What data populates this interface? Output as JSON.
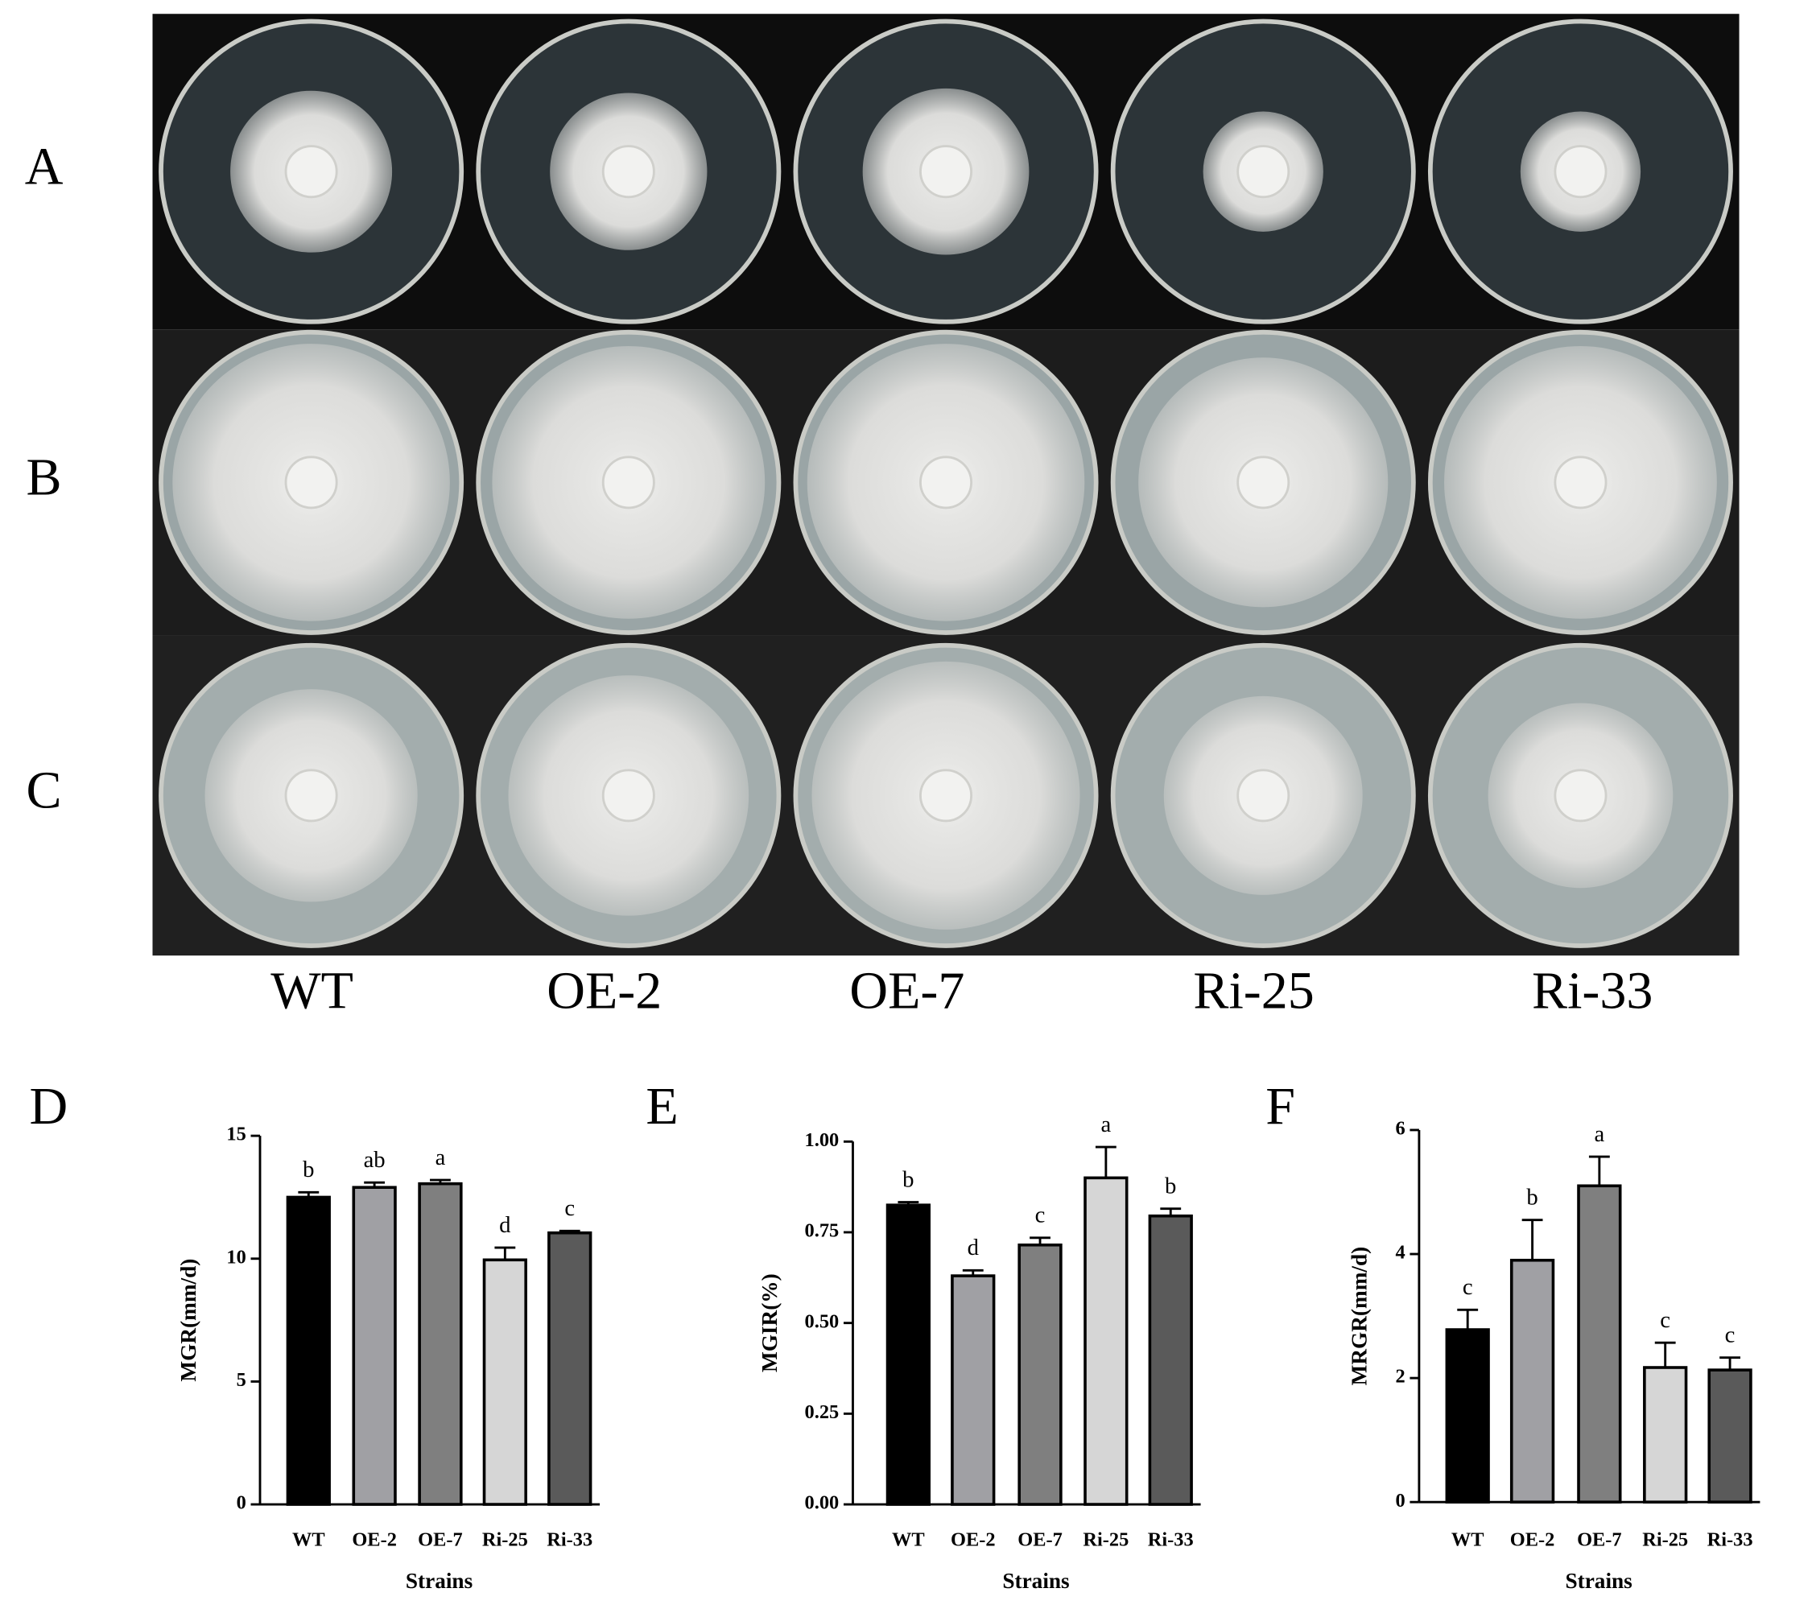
{
  "photo_panel": {
    "rows": [
      "A",
      "B",
      "C"
    ],
    "columns": [
      "WT",
      "OE-2",
      "OE-7",
      "Ri-25",
      "Ri-33"
    ]
  },
  "chart_data": [
    {
      "type": "bar",
      "panel": "D",
      "ylabel": "MGR(mm/d)",
      "xlabel": "Strains",
      "categories": [
        "WT",
        "OE-2",
        "OE-7",
        "Ri-25",
        "Ri-33"
      ],
      "values": [
        12.5,
        12.9,
        13.05,
        9.95,
        11.05
      ],
      "errors": [
        0.2,
        0.2,
        0.15,
        0.5,
        0.08
      ],
      "letters": [
        "b",
        "ab",
        "a",
        "d",
        "c"
      ],
      "colors": [
        "#000000",
        "#a0a0a4",
        "#7f7f7f",
        "#d6d6d6",
        "#5a5a5a"
      ],
      "ylim": [
        0,
        15
      ],
      "yticks": [
        0,
        5,
        10,
        15
      ]
    },
    {
      "type": "bar",
      "panel": "E",
      "ylabel": "MGIR(%)",
      "xlabel": "Strains",
      "categories": [
        "WT",
        "OE-2",
        "OE-7",
        "Ri-25",
        "Ri-33"
      ],
      "values": [
        0.825,
        0.63,
        0.715,
        0.9,
        0.795
      ],
      "errors": [
        0.008,
        0.015,
        0.02,
        0.085,
        0.02
      ],
      "letters": [
        "b",
        "d",
        "c",
        "a",
        "b"
      ],
      "colors": [
        "#000000",
        "#a0a0a4",
        "#7f7f7f",
        "#d6d6d6",
        "#5a5a5a"
      ],
      "ylim": [
        0,
        1
      ],
      "yticks": [
        {
          "value": 0,
          "label": "0.00"
        },
        {
          "value": 0.25,
          "label": "0.25"
        },
        {
          "value": 0.5,
          "label": "0.50"
        },
        {
          "value": 0.75,
          "label": "0.75"
        },
        {
          "value": 1,
          "label": "1.00"
        }
      ]
    },
    {
      "type": "bar",
      "panel": "F",
      "ylabel": "MRGR(mm/d)",
      "xlabel": "Strains",
      "categories": [
        "WT",
        "OE-2",
        "OE-7",
        "Ri-25",
        "Ri-33"
      ],
      "values": [
        2.78,
        3.9,
        5.1,
        2.17,
        2.13
      ],
      "errors": [
        0.32,
        0.65,
        0.47,
        0.4,
        0.2
      ],
      "letters": [
        "c",
        "b",
        "a",
        "c",
        "c"
      ],
      "colors": [
        "#000000",
        "#a0a0a4",
        "#7f7f7f",
        "#d6d6d6",
        "#5a5a5a"
      ],
      "ylim": [
        0,
        6
      ],
      "yticks": [
        0,
        2,
        4,
        6
      ]
    }
  ]
}
